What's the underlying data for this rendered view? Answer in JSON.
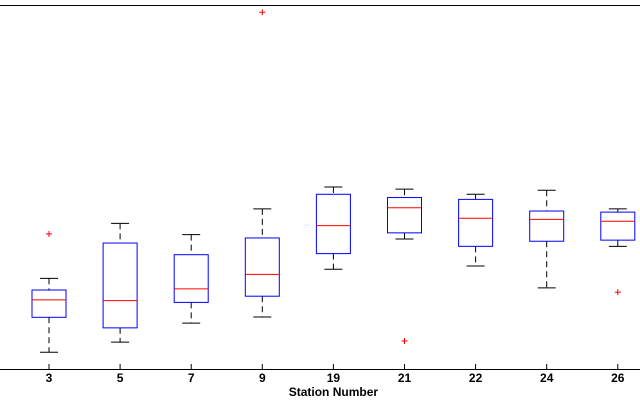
{
  "chart_data": {
    "type": "boxplot",
    "title": "",
    "xlabel": "Station Number",
    "ylabel": "",
    "ylim": [
      0,
      100
    ],
    "categories": [
      "3",
      "5",
      "7",
      "9",
      "19",
      "21",
      "22",
      "24",
      "26"
    ],
    "boxes": [
      {
        "category": "3",
        "whisker_low": 4.6,
        "q1": 14.2,
        "median": 19.0,
        "q3": 21.7,
        "whisker_high": 24.9,
        "outliers": [
          37.1
        ]
      },
      {
        "category": "5",
        "whisker_low": 7.4,
        "q1": 11.3,
        "median": 18.8,
        "q3": 34.6,
        "whisker_high": 40.0,
        "outliers": []
      },
      {
        "category": "7",
        "whisker_low": 12.6,
        "q1": 18.3,
        "median": 22.0,
        "q3": 31.4,
        "whisker_high": 36.9,
        "outliers": []
      },
      {
        "category": "9",
        "whisker_low": 14.3,
        "q1": 20.0,
        "median": 26.0,
        "q3": 36.0,
        "whisker_high": 44.0,
        "outliers": [
          98.0
        ]
      },
      {
        "category": "19",
        "whisker_low": 27.4,
        "q1": 31.7,
        "median": 39.4,
        "q3": 48.0,
        "whisker_high": 50.0,
        "outliers": []
      },
      {
        "category": "21",
        "whisker_low": 35.7,
        "q1": 37.4,
        "median": 44.3,
        "q3": 47.1,
        "whisker_high": 49.4,
        "outliers": [
          7.7
        ]
      },
      {
        "category": "22",
        "whisker_low": 28.3,
        "q1": 33.7,
        "median": 41.4,
        "q3": 46.6,
        "whisker_high": 48.0,
        "outliers": []
      },
      {
        "category": "24",
        "whisker_low": 22.3,
        "q1": 35.1,
        "median": 41.1,
        "q3": 43.4,
        "whisker_high": 49.1,
        "outliers": []
      },
      {
        "category": "26",
        "whisker_low": 33.7,
        "q1": 35.4,
        "median": 40.6,
        "q3": 43.1,
        "whisker_high": 44.0,
        "outliers": [
          21.1
        ]
      }
    ],
    "grid": false,
    "legend": "none",
    "colors": {
      "box": "#0000ff",
      "median": "#ff0000",
      "whisker": "#000000",
      "outlier": "#ff0000",
      "axis": "#000000"
    }
  }
}
